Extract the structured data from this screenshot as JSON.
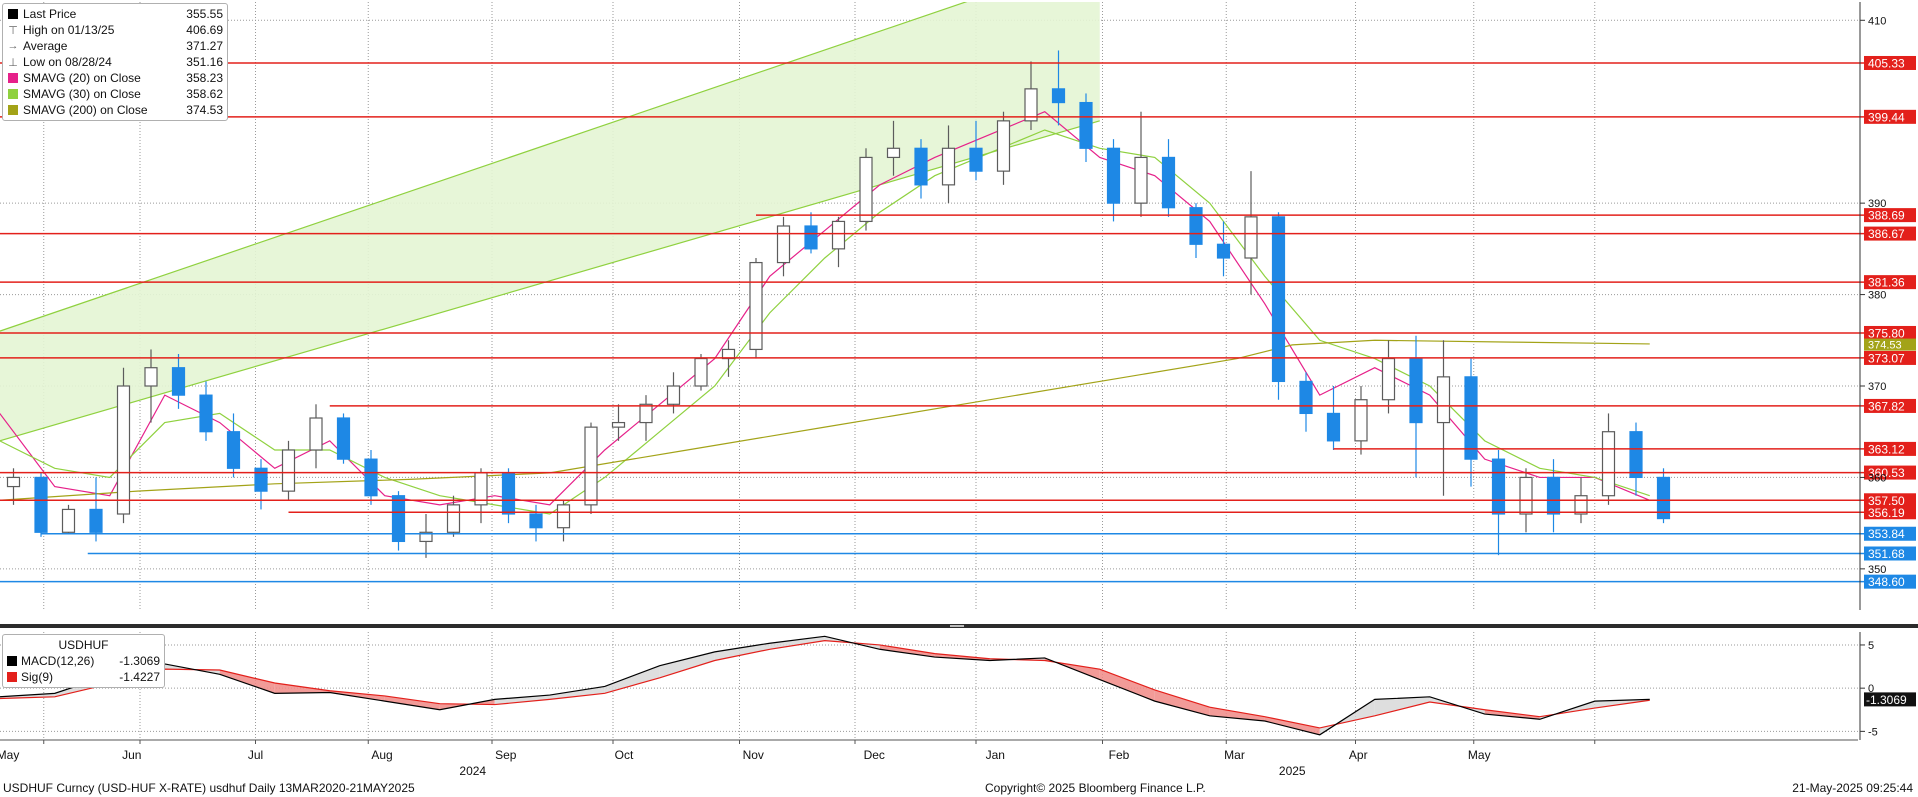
{
  "legend": {
    "items": [
      {
        "label": "Last Price",
        "value": "355.55",
        "swatch": "#000000",
        "icon": "square-swatch"
      },
      {
        "label": "High on 01/13/25",
        "value": "406.69",
        "icon": "high-marker"
      },
      {
        "label": "Average",
        "value": "371.27",
        "icon": "average-marker"
      },
      {
        "label": "Low on 08/28/24",
        "value": "351.16",
        "icon": "low-marker"
      },
      {
        "label": "SMAVG (20)  on Close",
        "value": "358.23",
        "swatch": "#e6218a",
        "icon": "square-swatch"
      },
      {
        "label": "SMAVG (30)  on Close",
        "value": "358.62",
        "swatch": "#8fd13f",
        "icon": "square-swatch"
      },
      {
        "label": "SMAVG (200)  on Close",
        "value": "374.53",
        "swatch": "#a3a318",
        "icon": "square-swatch"
      }
    ]
  },
  "macd_legend": {
    "title": "USDHUF",
    "items": [
      {
        "label": "MACD(12,26)",
        "value": "-1.3069",
        "swatch": "#000000"
      },
      {
        "label": "Sig(9)",
        "value": "-1.4227",
        "swatch": "#e3201b"
      }
    ]
  },
  "footer": {
    "left": "USDHUF Curncy (USD-HUF X-RATE) usdhuf  Daily 13MAR2020-21MAY2025",
    "center": "Copyright© 2025 Bloomberg Finance L.P.",
    "right": "21-May-2025 09:25:44"
  },
  "colors": {
    "candle_up": "#5c5c5c",
    "candle_down": "#1e88e5",
    "resistance": "#e3201b",
    "support": "#1e88e5",
    "sma20": "#e6218a",
    "sma30": "#8fd13f",
    "sma200": "#a3a318",
    "channel_fill": "#e4f5d4",
    "channel_line": "#8fd13f",
    "macd": "#000000",
    "signal": "#e3201b"
  },
  "chart_data": [
    {
      "type": "candlestick",
      "title": "",
      "x_unit": "week",
      "x_start_label": "2024-04-22",
      "month_labels": [
        "May",
        "Jun",
        "Jul",
        "Aug",
        "Sep",
        "Oct",
        "Nov",
        "Dec",
        "Jan",
        "Feb",
        "Mar",
        "Apr",
        "May"
      ],
      "year_labels": [
        "2024",
        "2025"
      ],
      "month_positions": [
        0.3,
        4.8,
        9.3,
        13.9,
        18.4,
        22.7,
        27.4,
        31.8,
        36.2,
        40.7,
        44.9,
        49.4,
        53.8
      ],
      "year_positions": [
        17.2,
        47.0
      ],
      "month_boundaries": [
        1.6,
        5.1,
        9.3,
        13.4,
        17.9,
        22.3,
        26.9,
        31.1,
        35.5,
        40.1,
        44.6,
        49.3,
        53.6,
        58.0
      ],
      "ylim": [
        345.5,
        412
      ],
      "yticks": [
        350,
        360,
        370,
        380,
        390,
        410
      ],
      "y_tick_labels": [
        "350",
        "360",
        "370",
        "380",
        "390",
        "410"
      ],
      "candles": [
        {
          "x": 0.5,
          "open": 359.0,
          "high": 361.0,
          "low": 357.0,
          "close": 360.0
        },
        {
          "x": 1.5,
          "open": 360.0,
          "high": 360.5,
          "low": 353.5,
          "close": 354.0
        },
        {
          "x": 2.5,
          "open": 354.0,
          "high": 357.0,
          "low": 353.8,
          "close": 356.5
        },
        {
          "x": 3.5,
          "open": 356.5,
          "high": 360.0,
          "low": 353.0,
          "close": 354.0
        },
        {
          "x": 4.5,
          "open": 356.0,
          "high": 372.0,
          "low": 355.0,
          "close": 370.0
        },
        {
          "x": 5.5,
          "open": 370.0,
          "high": 374.0,
          "low": 366.0,
          "close": 372.0
        },
        {
          "x": 6.5,
          "open": 372.0,
          "high": 373.5,
          "low": 367.5,
          "close": 369.0
        },
        {
          "x": 7.5,
          "open": 369.0,
          "high": 370.5,
          "low": 364.0,
          "close": 365.0
        },
        {
          "x": 8.5,
          "open": 365.0,
          "high": 367.0,
          "low": 360.0,
          "close": 361.0
        },
        {
          "x": 9.5,
          "open": 361.0,
          "high": 362.0,
          "low": 356.5,
          "close": 358.5
        },
        {
          "x": 10.5,
          "open": 358.5,
          "high": 364.0,
          "low": 357.5,
          "close": 363.0
        },
        {
          "x": 11.5,
          "open": 363.0,
          "high": 368.0,
          "low": 361.0,
          "close": 366.5
        },
        {
          "x": 12.5,
          "open": 366.5,
          "high": 367.0,
          "low": 361.5,
          "close": 362.0
        },
        {
          "x": 13.5,
          "open": 362.0,
          "high": 363.0,
          "low": 357.0,
          "close": 358.0
        },
        {
          "x": 14.5,
          "open": 358.0,
          "high": 358.5,
          "low": 352.0,
          "close": 353.0
        },
        {
          "x": 15.5,
          "open": 353.0,
          "high": 356.0,
          "low": 351.2,
          "close": 354.0
        },
        {
          "x": 16.5,
          "open": 354.0,
          "high": 358.0,
          "low": 353.5,
          "close": 357.0
        },
        {
          "x": 17.5,
          "open": 357.0,
          "high": 361.0,
          "low": 355.0,
          "close": 360.5
        },
        {
          "x": 18.5,
          "open": 360.5,
          "high": 361.0,
          "low": 355.0,
          "close": 356.0
        },
        {
          "x": 19.5,
          "open": 356.0,
          "high": 357.0,
          "low": 353.0,
          "close": 354.5
        },
        {
          "x": 20.5,
          "open": 354.5,
          "high": 357.5,
          "low": 353.0,
          "close": 357.0
        },
        {
          "x": 21.5,
          "open": 357.0,
          "high": 366.0,
          "low": 356.0,
          "close": 365.5
        },
        {
          "x": 22.5,
          "open": 365.5,
          "high": 368.0,
          "low": 364.0,
          "close": 366.0
        },
        {
          "x": 23.5,
          "open": 366.0,
          "high": 369.0,
          "low": 364.0,
          "close": 368.0
        },
        {
          "x": 24.5,
          "open": 368.0,
          "high": 371.5,
          "low": 367.0,
          "close": 370.0
        },
        {
          "x": 25.5,
          "open": 370.0,
          "high": 373.5,
          "low": 369.5,
          "close": 373.0
        },
        {
          "x": 26.5,
          "open": 373.0,
          "high": 375.0,
          "low": 371.0,
          "close": 374.0
        },
        {
          "x": 27.5,
          "open": 374.0,
          "high": 384.0,
          "low": 373.0,
          "close": 383.5
        },
        {
          "x": 28.5,
          "open": 383.5,
          "high": 388.5,
          "low": 382.0,
          "close": 387.5
        },
        {
          "x": 29.5,
          "open": 387.5,
          "high": 389.0,
          "low": 384.5,
          "close": 385.0
        },
        {
          "x": 30.5,
          "open": 385.0,
          "high": 388.5,
          "low": 383.0,
          "close": 388.0
        },
        {
          "x": 31.5,
          "open": 388.0,
          "high": 396.0,
          "low": 387.0,
          "close": 395.0
        },
        {
          "x": 32.5,
          "open": 395.0,
          "high": 399.0,
          "low": 393.0,
          "close": 396.0
        },
        {
          "x": 33.5,
          "open": 396.0,
          "high": 397.0,
          "low": 390.5,
          "close": 392.0
        },
        {
          "x": 34.5,
          "open": 392.0,
          "high": 398.5,
          "low": 390.0,
          "close": 396.0
        },
        {
          "x": 35.5,
          "open": 396.0,
          "high": 399.0,
          "low": 392.5,
          "close": 393.5
        },
        {
          "x": 36.5,
          "open": 393.5,
          "high": 400.0,
          "low": 392.0,
          "close": 399.0
        },
        {
          "x": 37.5,
          "open": 399.0,
          "high": 405.5,
          "low": 398.0,
          "close": 402.5
        },
        {
          "x": 38.5,
          "open": 402.5,
          "high": 406.7,
          "low": 398.5,
          "close": 401.0
        },
        {
          "x": 39.5,
          "open": 401.0,
          "high": 402.0,
          "low": 394.5,
          "close": 396.0
        },
        {
          "x": 40.5,
          "open": 396.0,
          "high": 397.0,
          "low": 388.0,
          "close": 390.0
        },
        {
          "x": 41.5,
          "open": 390.0,
          "high": 400.0,
          "low": 388.5,
          "close": 395.0
        },
        {
          "x": 42.5,
          "open": 395.0,
          "high": 397.0,
          "low": 388.5,
          "close": 389.5
        },
        {
          "x": 43.5,
          "open": 389.5,
          "high": 390.0,
          "low": 384.0,
          "close": 385.5
        },
        {
          "x": 44.5,
          "open": 385.5,
          "high": 388.0,
          "low": 382.0,
          "close": 384.0
        },
        {
          "x": 45.5,
          "open": 384.0,
          "high": 393.5,
          "low": 380.0,
          "close": 388.5
        },
        {
          "x": 46.5,
          "open": 388.5,
          "high": 389.0,
          "low": 368.5,
          "close": 370.5
        },
        {
          "x": 47.5,
          "open": 370.5,
          "high": 371.5,
          "low": 365.0,
          "close": 367.0
        },
        {
          "x": 48.5,
          "open": 367.0,
          "high": 370.0,
          "low": 363.0,
          "close": 364.0
        },
        {
          "x": 49.5,
          "open": 364.0,
          "high": 370.0,
          "low": 362.5,
          "close": 368.5
        },
        {
          "x": 50.5,
          "open": 368.5,
          "high": 375.0,
          "low": 367.0,
          "close": 373.0
        },
        {
          "x": 51.5,
          "open": 373.0,
          "high": 375.5,
          "low": 360.0,
          "close": 366.0
        },
        {
          "x": 52.5,
          "open": 366.0,
          "high": 375.0,
          "low": 358.0,
          "close": 371.0
        },
        {
          "x": 53.5,
          "open": 371.0,
          "high": 373.0,
          "low": 359.0,
          "close": 362.0
        },
        {
          "x": 54.5,
          "open": 362.0,
          "high": 363.0,
          "low": 351.5,
          "close": 356.0
        },
        {
          "x": 55.5,
          "open": 356.0,
          "high": 361.0,
          "low": 354.0,
          "close": 360.0
        },
        {
          "x": 56.5,
          "open": 360.0,
          "high": 362.0,
          "low": 354.0,
          "close": 356.0
        },
        {
          "x": 57.5,
          "open": 356.0,
          "high": 360.0,
          "low": 355.0,
          "close": 358.0
        },
        {
          "x": 58.5,
          "open": 358.0,
          "high": 367.0,
          "low": 357.0,
          "close": 365.0
        },
        {
          "x": 59.5,
          "open": 365.0,
          "high": 366.0,
          "low": 358.0,
          "close": 360.0
        },
        {
          "x": 60.5,
          "open": 360.0,
          "high": 361.0,
          "low": 355.0,
          "close": 355.5
        }
      ],
      "series": [
        {
          "name": "SMAVG (20)  on Close",
          "x": [
            0,
            2,
            4,
            6,
            8,
            10,
            12,
            14,
            16,
            18,
            20,
            22,
            24,
            26,
            28,
            30,
            32,
            34,
            36,
            38,
            40,
            42,
            44,
            46,
            48,
            50,
            52,
            54,
            56,
            58,
            60
          ],
          "values": [
            367,
            359,
            358,
            369,
            366,
            361,
            364,
            358,
            357,
            358,
            357,
            363,
            368,
            373,
            382,
            387,
            392,
            395,
            397.5,
            400,
            395,
            393,
            388,
            379,
            369,
            372,
            369,
            362,
            360,
            360,
            357.5
          ]
        },
        {
          "name": "SMAVG (30)  on Close",
          "x": [
            0,
            2,
            4,
            6,
            8,
            10,
            12,
            14,
            16,
            18,
            20,
            22,
            24,
            26,
            28,
            30,
            32,
            34,
            36,
            38,
            40,
            42,
            44,
            46,
            48,
            50,
            52,
            54,
            56,
            58,
            60
          ],
          "values": [
            364,
            361,
            360,
            366,
            367,
            363,
            363,
            360,
            358,
            357,
            356,
            360,
            365,
            370,
            378,
            384,
            389,
            393,
            395.5,
            398,
            396,
            395,
            390,
            382,
            375,
            373,
            370,
            364,
            361,
            360,
            358
          ]
        },
        {
          "name": "SMAVG (200)  on Close",
          "x": [
            0,
            5,
            10,
            15,
            20,
            25,
            30,
            35,
            40,
            45,
            47,
            50,
            55,
            60
          ],
          "values": [
            357.5,
            358.5,
            359.3,
            359.8,
            360.5,
            363.0,
            365.5,
            368.0,
            370.5,
            373.0,
            374.5,
            375.0,
            374.8,
            374.6
          ]
        }
      ],
      "channel": {
        "x": [
          0,
          40
        ],
        "lower": [
          364,
          399
        ],
        "upper": [
          376,
          417
        ]
      },
      "horizontal_levels": [
        {
          "value": 405.33,
          "label": "405.33",
          "kind": "resistance",
          "x_start": 0
        },
        {
          "value": 399.44,
          "label": "399.44",
          "kind": "resistance",
          "x_start": 0
        },
        {
          "value": 388.69,
          "label": "388.69",
          "kind": "resistance",
          "x_start": 27.5
        },
        {
          "value": 386.67,
          "label": "386.67",
          "kind": "resistance",
          "x_start": 0
        },
        {
          "value": 381.36,
          "label": "381.36",
          "kind": "resistance",
          "x_start": 0
        },
        {
          "value": 375.8,
          "label": "375.80",
          "kind": "resistance",
          "x_start": 0
        },
        {
          "value": 373.07,
          "label": "373.07",
          "kind": "resistance",
          "x_start": 0
        },
        {
          "value": 367.82,
          "label": "367.82",
          "kind": "resistance",
          "x_start": 12.0
        },
        {
          "value": 363.12,
          "label": "363.12",
          "kind": "resistance",
          "x_start": 48.5
        },
        {
          "value": 360.53,
          "label": "360.53",
          "kind": "resistance",
          "x_start": 0
        },
        {
          "value": 357.5,
          "label": "357.50",
          "kind": "resistance",
          "x_start": 0
        },
        {
          "value": 356.19,
          "label": "356.19",
          "kind": "resistance",
          "x_start": 10.5
        },
        {
          "value": 353.84,
          "label": "353.84",
          "kind": "support",
          "x_start": 1.5
        },
        {
          "value": 351.68,
          "label": "351.68",
          "kind": "support",
          "x_start": 3.2
        },
        {
          "value": 348.6,
          "label": "348.60",
          "kind": "support",
          "x_start": 0
        }
      ],
      "right_tags": [
        {
          "value": 374.53,
          "label": "374.53",
          "color": "#a3a318"
        }
      ]
    },
    {
      "type": "line",
      "title": "USDHUF",
      "ylim": [
        -6,
        6.5
      ],
      "yticks": [
        5,
        0,
        -5
      ],
      "y_tick_labels": [
        "5",
        "0",
        "-5"
      ],
      "last_value_label": "-1.3069",
      "series": [
        {
          "name": "MACD(12,26)",
          "x": [
            0,
            2,
            4,
            6,
            8,
            10,
            12,
            14,
            16,
            18,
            20,
            22,
            24,
            26,
            28,
            30,
            32,
            34,
            36,
            38,
            40,
            42,
            44,
            46,
            48,
            50,
            52,
            54,
            56,
            58,
            60
          ],
          "values": [
            -1.0,
            -0.6,
            1.5,
            2.8,
            1.6,
            -0.6,
            -0.5,
            -1.5,
            -2.5,
            -1.3,
            -0.8,
            0.2,
            2.6,
            4.2,
            5.2,
            6.0,
            4.5,
            3.6,
            3.2,
            3.5,
            1.0,
            -1.5,
            -3.2,
            -3.8,
            -5.4,
            -1.3,
            -1.0,
            -3.0,
            -3.6,
            -1.5,
            -1.3
          ]
        },
        {
          "name": "Sig(9)",
          "x": [
            0,
            2,
            4,
            6,
            8,
            10,
            12,
            14,
            16,
            18,
            20,
            22,
            24,
            26,
            28,
            30,
            32,
            34,
            36,
            38,
            40,
            42,
            44,
            46,
            48,
            50,
            52,
            54,
            56,
            58,
            60
          ],
          "values": [
            -1.2,
            -1.0,
            0.5,
            2.2,
            2.1,
            0.6,
            -0.3,
            -0.9,
            -1.8,
            -1.9,
            -1.3,
            -0.6,
            1.2,
            3.2,
            4.5,
            5.5,
            5.0,
            4.0,
            3.4,
            3.2,
            2.2,
            -0.2,
            -2.2,
            -3.3,
            -4.6,
            -3.2,
            -1.6,
            -2.5,
            -3.3,
            -2.3,
            -1.4
          ]
        }
      ]
    }
  ]
}
